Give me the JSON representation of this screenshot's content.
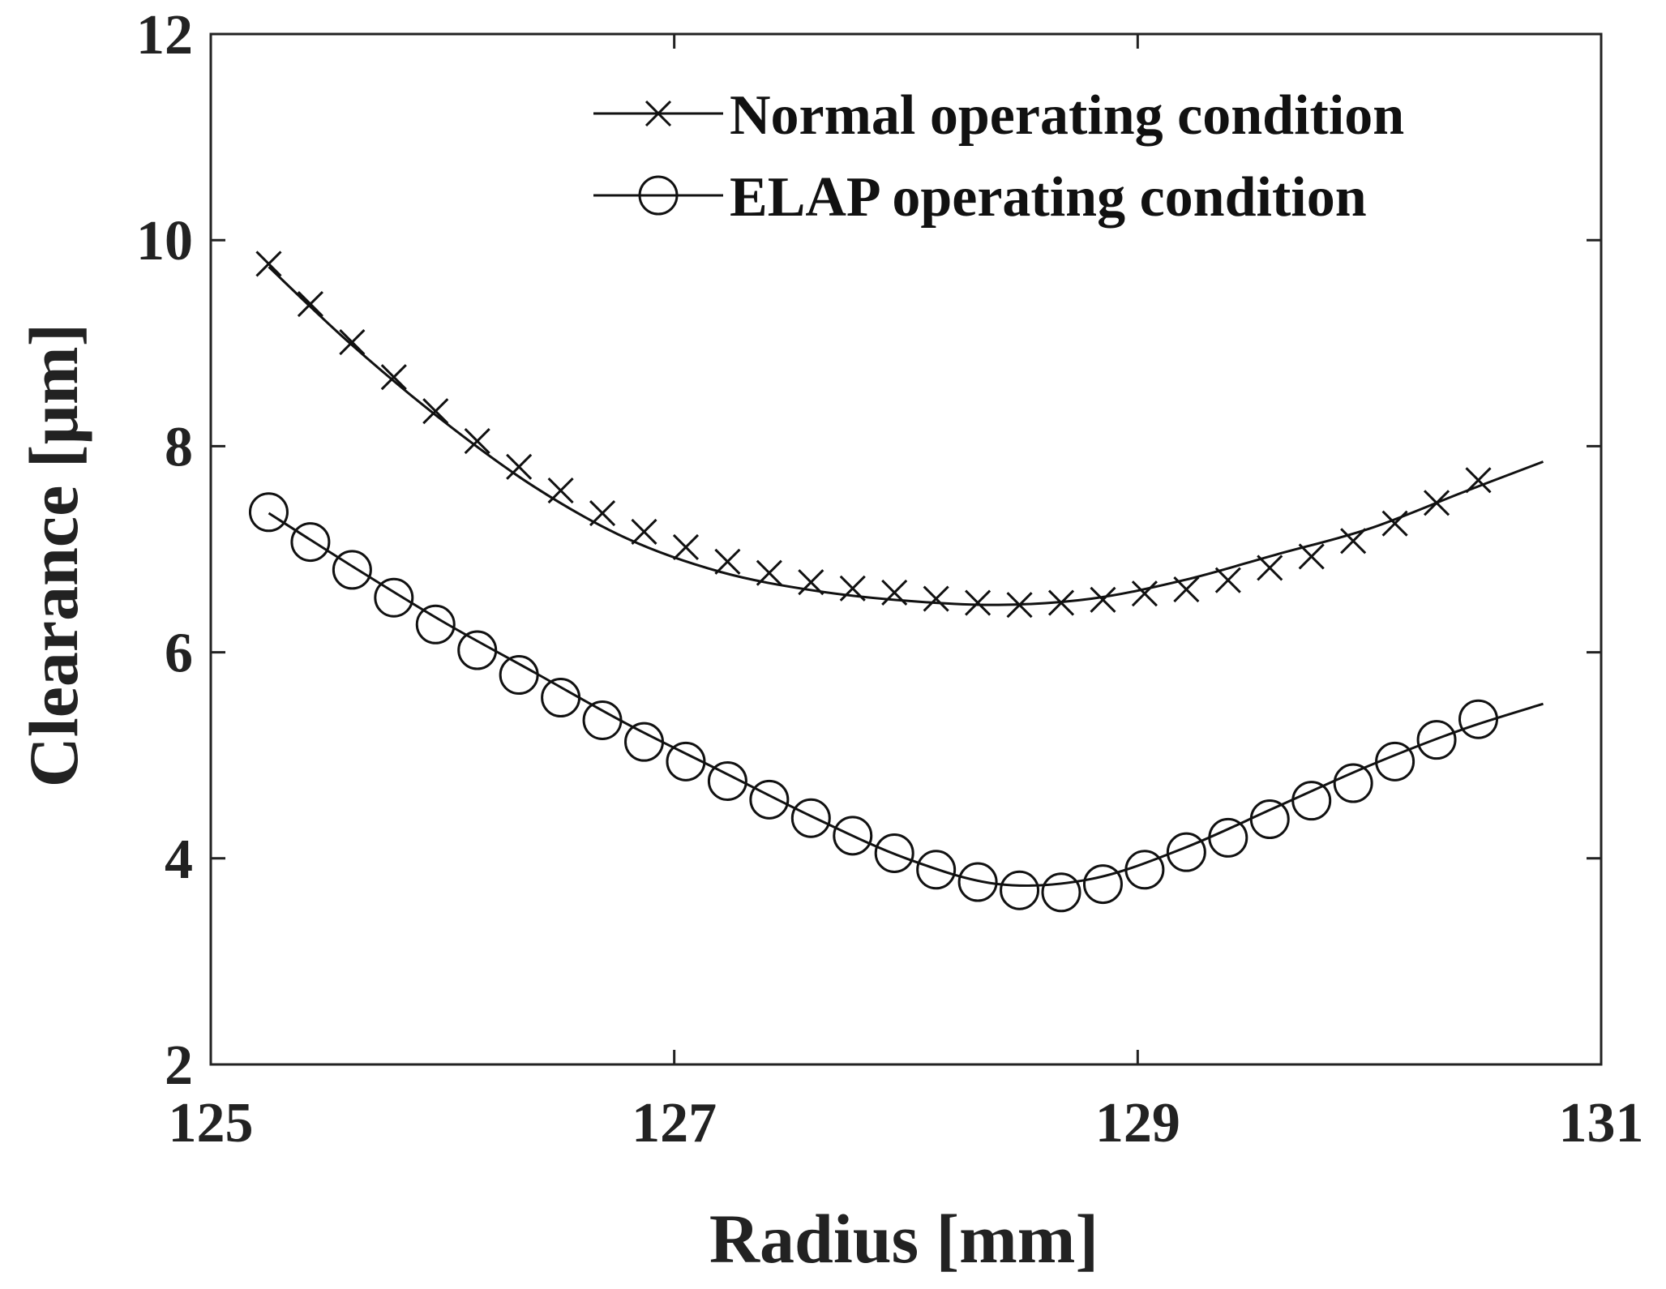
{
  "chart_data": {
    "type": "line",
    "title": "",
    "xlabel": "Radius [mm]",
    "ylabel": "Clearance [µm]",
    "xlim": [
      125,
      131
    ],
    "ylim": [
      2,
      12
    ],
    "xticks": [
      125,
      127,
      129,
      131
    ],
    "yticks": [
      2,
      4,
      6,
      8,
      10,
      12
    ],
    "xtick_labels": [
      "125",
      "127",
      "129",
      "131"
    ],
    "ytick_labels": [
      "2",
      "4",
      "6",
      "8",
      "10",
      "12"
    ],
    "grid": false,
    "box": true,
    "legend_position": "top-right",
    "series": [
      {
        "name": "Normal operating condition",
        "marker": "x",
        "color": "#111111",
        "curve": {
          "x": [
            125.25,
            125.6,
            126.0,
            126.4,
            126.8,
            127.2,
            127.6,
            128.0,
            128.4,
            128.8,
            129.2,
            129.6,
            130.0,
            130.4,
            130.75
          ],
          "y": [
            9.74,
            9.0,
            8.25,
            7.6,
            7.1,
            6.78,
            6.6,
            6.5,
            6.46,
            6.52,
            6.7,
            6.95,
            7.2,
            7.55,
            7.85
          ]
        },
        "x": [
          125.25,
          125.43,
          125.61,
          125.79,
          125.97,
          126.15,
          126.33,
          126.51,
          126.69,
          126.87,
          127.05,
          127.23,
          127.41,
          127.59,
          127.77,
          127.95,
          128.13,
          128.31,
          128.49,
          128.67,
          128.85,
          129.03,
          129.21,
          129.39,
          129.57,
          129.75,
          129.93,
          130.11,
          130.29,
          130.47
        ],
        "y": [
          9.77,
          9.38,
          9.01,
          8.67,
          8.34,
          8.05,
          7.8,
          7.57,
          7.35,
          7.17,
          7.02,
          6.88,
          6.77,
          6.68,
          6.62,
          6.58,
          6.52,
          6.48,
          6.46,
          6.48,
          6.51,
          6.57,
          6.61,
          6.7,
          6.82,
          6.93,
          7.08,
          7.25,
          7.45,
          7.67
        ]
      },
      {
        "name": "ELAP operating condition",
        "marker": "o",
        "color": "#111111",
        "curve": {
          "x": [
            125.25,
            125.6,
            126.0,
            126.4,
            126.8,
            127.2,
            127.6,
            128.0,
            128.4,
            128.8,
            129.2,
            129.6,
            130.0,
            130.4,
            130.75
          ],
          "y": [
            7.35,
            6.85,
            6.3,
            5.8,
            5.3,
            4.85,
            4.4,
            4.0,
            3.75,
            3.8,
            4.1,
            4.5,
            4.9,
            5.25,
            5.5
          ]
        },
        "x": [
          125.25,
          125.43,
          125.61,
          125.79,
          125.97,
          126.15,
          126.33,
          126.51,
          126.69,
          126.87,
          127.05,
          127.23,
          127.41,
          127.59,
          127.77,
          127.95,
          128.13,
          128.31,
          128.49,
          128.67,
          128.85,
          129.03,
          129.21,
          129.39,
          129.57,
          129.75,
          129.93,
          130.11,
          130.29,
          130.47
        ],
        "y": [
          7.36,
          7.07,
          6.8,
          6.53,
          6.27,
          6.02,
          5.78,
          5.56,
          5.34,
          5.13,
          4.94,
          4.75,
          4.57,
          4.39,
          4.22,
          4.05,
          3.89,
          3.77,
          3.69,
          3.67,
          3.75,
          3.89,
          4.06,
          4.2,
          4.38,
          4.56,
          4.73,
          4.94,
          5.15,
          5.35
        ]
      }
    ]
  }
}
